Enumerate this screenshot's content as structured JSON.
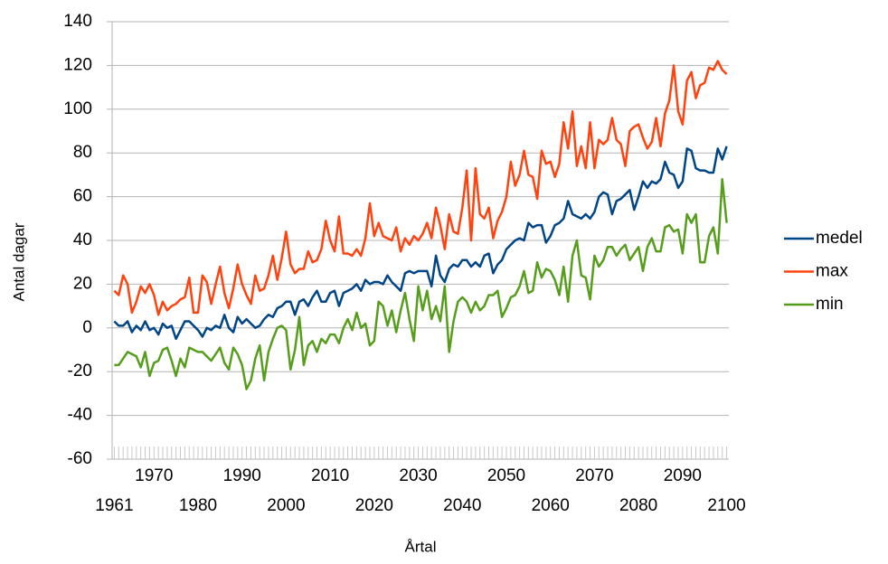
{
  "chart_data": {
    "type": "line",
    "x_label": "Årtal",
    "y_label": "Antal dagar",
    "x": [
      1961,
      1962,
      1963,
      1964,
      1965,
      1966,
      1967,
      1968,
      1969,
      1970,
      1971,
      1972,
      1973,
      1974,
      1975,
      1976,
      1977,
      1978,
      1979,
      1980,
      1981,
      1982,
      1983,
      1984,
      1985,
      1986,
      1987,
      1988,
      1989,
      1990,
      1991,
      1992,
      1993,
      1994,
      1995,
      1996,
      1997,
      1998,
      1999,
      2000,
      2001,
      2002,
      2003,
      2004,
      2005,
      2006,
      2007,
      2008,
      2009,
      2010,
      2011,
      2012,
      2013,
      2014,
      2015,
      2016,
      2017,
      2018,
      2019,
      2020,
      2021,
      2022,
      2023,
      2024,
      2025,
      2026,
      2027,
      2028,
      2029,
      2030,
      2031,
      2032,
      2033,
      2034,
      2035,
      2036,
      2037,
      2038,
      2039,
      2040,
      2041,
      2042,
      2043,
      2044,
      2045,
      2046,
      2047,
      2048,
      2049,
      2050,
      2051,
      2052,
      2053,
      2054,
      2055,
      2056,
      2057,
      2058,
      2059,
      2060,
      2061,
      2062,
      2063,
      2064,
      2065,
      2066,
      2067,
      2068,
      2069,
      2070,
      2071,
      2072,
      2073,
      2074,
      2075,
      2076,
      2077,
      2078,
      2079,
      2080,
      2081,
      2082,
      2083,
      2084,
      2085,
      2086,
      2087,
      2088,
      2089,
      2090,
      2091,
      2092,
      2093,
      2094,
      2095,
      2096,
      2097,
      2098,
      2099,
      2100
    ],
    "xlim": [
      1960.5,
      2100.5
    ],
    "xticks": [
      1961,
      1970,
      1980,
      1990,
      2000,
      2010,
      2020,
      2030,
      2040,
      2050,
      2060,
      2070,
      2080,
      2090,
      2100
    ],
    "ylim": [
      -60,
      140
    ],
    "yticks": [
      -60,
      -40,
      -20,
      0,
      20,
      40,
      60,
      80,
      100,
      120,
      140
    ],
    "grid": true,
    "series": [
      {
        "name": "medel",
        "color": "#004586",
        "values": [
          3,
          1,
          1,
          3,
          -2,
          1,
          -1,
          3,
          -1,
          0,
          -3,
          2,
          0,
          1,
          -5,
          -1,
          3,
          3,
          1,
          -1,
          -4,
          0,
          -1,
          1,
          0,
          6,
          0,
          -2,
          5,
          2,
          4,
          2,
          0,
          1,
          4,
          6,
          5,
          9,
          10,
          12,
          12,
          6,
          12,
          13,
          10,
          14,
          17,
          12,
          12,
          16,
          17,
          10,
          16,
          17,
          18,
          20,
          17,
          22,
          20,
          21,
          21,
          20,
          24,
          21,
          19,
          17,
          25,
          26,
          25,
          26,
          26,
          26,
          19,
          33,
          24,
          21,
          27,
          29,
          28,
          31,
          31,
          28,
          30,
          28,
          33,
          34,
          25,
          29,
          31,
          36,
          38,
          40,
          41,
          40,
          48,
          46,
          47,
          47,
          39,
          42,
          47,
          48,
          50,
          58,
          52,
          51,
          50,
          52,
          50,
          53,
          60,
          62,
          61,
          52,
          58,
          59,
          61,
          63,
          54,
          60,
          67,
          64,
          67,
          66,
          68,
          76,
          71,
          70,
          64,
          67,
          82,
          81,
          73,
          72,
          72,
          71,
          71,
          82,
          77,
          83
        ]
      },
      {
        "name": "max",
        "color": "#ff420e",
        "values": [
          17,
          15,
          24,
          20,
          7,
          12,
          19,
          16,
          20,
          15,
          6,
          12,
          8,
          10,
          11,
          13,
          14,
          23,
          7,
          7,
          24,
          21,
          11,
          20,
          28,
          16,
          9,
          18,
          29,
          20,
          15,
          11,
          24,
          17,
          18,
          24,
          33,
          22,
          32,
          44,
          29,
          25,
          27,
          27,
          35,
          30,
          31,
          36,
          49,
          40,
          35,
          51,
          34,
          34,
          33,
          36,
          33,
          41,
          57,
          42,
          48,
          42,
          41,
          40,
          46,
          35,
          41,
          38,
          42,
          40,
          43,
          48,
          41,
          55,
          47,
          36,
          52,
          44,
          43,
          55,
          72,
          40,
          73,
          52,
          50,
          55,
          41,
          49,
          53,
          60,
          76,
          65,
          70,
          81,
          70,
          69,
          59,
          81,
          75,
          76,
          69,
          75,
          94,
          82,
          99,
          74,
          83,
          73,
          94,
          73,
          86,
          84,
          86,
          96,
          86,
          84,
          74,
          90,
          92,
          93,
          87,
          82,
          85,
          96,
          83,
          98,
          104,
          120,
          99,
          93,
          113,
          117,
          105,
          111,
          112,
          119,
          118,
          122,
          118,
          116
        ]
      },
      {
        "name": "min",
        "color": "#579d1c",
        "values": [
          -17,
          -17,
          -14,
          -11,
          -12,
          -13,
          -18,
          -11,
          -22,
          -16,
          -15,
          -10,
          -9,
          -15,
          -22,
          -14,
          -18,
          -9,
          -10,
          -11,
          -11,
          -13,
          -15,
          -12,
          -9,
          -16,
          -19,
          -9,
          -12,
          -17,
          -28,
          -24,
          -14,
          -8,
          -24,
          -11,
          -5,
          0,
          1,
          -1,
          -19,
          -10,
          5,
          -17,
          -8,
          -6,
          -11,
          -5,
          -7,
          -3,
          -3,
          -7,
          0,
          4,
          -1,
          7,
          0,
          2,
          -8,
          -6,
          12,
          10,
          1,
          8,
          -2,
          8,
          16,
          4,
          -6,
          19,
          8,
          17,
          4,
          10,
          3,
          19,
          -11,
          3,
          12,
          14,
          12,
          7,
          12,
          8,
          10,
          15,
          15,
          17,
          5,
          9,
          14,
          15,
          19,
          26,
          16,
          17,
          30,
          23,
          27,
          26,
          22,
          15,
          28,
          12,
          33,
          40,
          24,
          23,
          13,
          33,
          28,
          31,
          37,
          37,
          33,
          36,
          38,
          31,
          34,
          37,
          26,
          37,
          41,
          35,
          35,
          46,
          47,
          44,
          45,
          34,
          52,
          48,
          52,
          30,
          30,
          42,
          46,
          34,
          68,
          48
        ]
      }
    ]
  }
}
